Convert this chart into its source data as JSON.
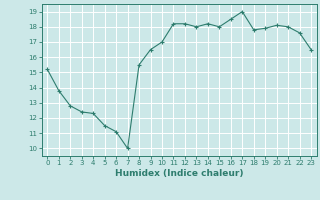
{
  "x": [
    0,
    1,
    2,
    3,
    4,
    5,
    6,
    7,
    8,
    9,
    10,
    11,
    12,
    13,
    14,
    15,
    16,
    17,
    18,
    19,
    20,
    21,
    22,
    23
  ],
  "y": [
    15.2,
    13.8,
    12.8,
    12.4,
    12.3,
    11.5,
    11.1,
    10.0,
    15.5,
    16.5,
    17.0,
    18.2,
    18.2,
    18.0,
    18.2,
    18.0,
    18.5,
    19.0,
    17.8,
    17.9,
    18.1,
    18.0,
    17.6,
    16.5
  ],
  "line_color": "#2e7d6e",
  "bg_color": "#cce8e8",
  "grid_color": "#ffffff",
  "xlabel": "Humidex (Indice chaleur)",
  "ylim": [
    9.5,
    19.5
  ],
  "xlim": [
    -0.5,
    23.5
  ],
  "yticks": [
    10,
    11,
    12,
    13,
    14,
    15,
    16,
    17,
    18,
    19
  ],
  "xticks": [
    0,
    1,
    2,
    3,
    4,
    5,
    6,
    7,
    8,
    9,
    10,
    11,
    12,
    13,
    14,
    15,
    16,
    17,
    18,
    19,
    20,
    21,
    22,
    23
  ],
  "tick_fontsize": 5.0,
  "xlabel_fontsize": 6.5
}
